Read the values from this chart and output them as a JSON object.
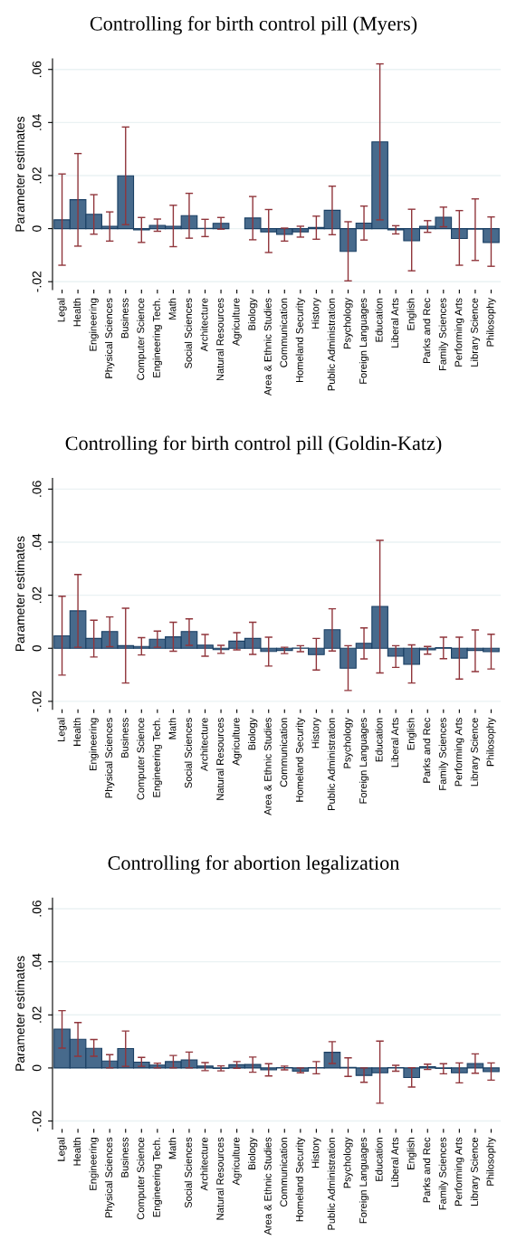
{
  "chart_data": [
    {
      "type": "bar",
      "title": "Controlling for birth control pill (Myers)",
      "ylabel": "Parameter estimates",
      "categories": [
        "Legal",
        "Health",
        "Engineering",
        "Physical Sciences",
        "Business",
        "Computer Science",
        "Engineering Tech.",
        "Math",
        "Social Sciences",
        "Architecture",
        "Natural Resources",
        "Agriculture",
        "Biology",
        "Area & Ethnic Studies",
        "Communication",
        "Homeland Security",
        "History",
        "Public Administration",
        "Psychology",
        "Foreign Languages",
        "Education",
        "Liberal Arts",
        "English",
        "Parks and Rec",
        "Family Sciences",
        "Performing Arts",
        "Library Science",
        "Philosophy"
      ],
      "values": [
        0.0033,
        0.0109,
        0.0054,
        0.0009,
        0.0199,
        -0.0005,
        0.0012,
        0.0009,
        0.0049,
        0.0001,
        0.002,
        null,
        0.004,
        -0.0012,
        -0.0022,
        -0.0012,
        0.0004,
        0.0069,
        -0.0086,
        0.0021,
        0.0327,
        -0.0005,
        -0.0046,
        0.0009,
        0.0043,
        -0.0037,
        -0.0002,
        -0.0052
      ],
      "errors": [
        [
          -0.0138,
          0.0206
        ],
        [
          -0.0066,
          0.0283
        ],
        [
          -0.0021,
          0.0128
        ],
        [
          -0.0047,
          0.0063
        ],
        [
          0.0015,
          0.0383
        ],
        [
          -0.0052,
          0.0042
        ],
        [
          -0.001,
          0.0036
        ],
        [
          -0.0068,
          0.0088
        ],
        [
          -0.0036,
          0.0133
        ],
        [
          -0.003,
          0.0035
        ],
        [
          -0.0002,
          0.0042
        ],
        null,
        [
          -0.0042,
          0.0121
        ],
        [
          -0.009,
          0.0072
        ],
        [
          -0.0047,
          0.0002
        ],
        [
          -0.0032,
          0.0009
        ],
        [
          -0.004,
          0.0047
        ],
        [
          -0.0023,
          0.016
        ],
        [
          -0.0197,
          0.0026
        ],
        [
          -0.0043,
          0.0085
        ],
        [
          0.0033,
          0.0621
        ],
        [
          -0.002,
          0.0011
        ],
        [
          -0.0159,
          0.0073
        ],
        [
          -0.0014,
          0.003
        ],
        [
          0.0007,
          0.0081
        ],
        [
          -0.0138,
          0.0068
        ],
        [
          -0.012,
          0.0112
        ],
        [
          -0.0142,
          0.0044
        ]
      ],
      "color": "#476a8c",
      "ylim": [
        -0.023,
        0.064
      ],
      "yticks": [
        {
          "value": -0.02,
          "label": "-.02"
        },
        0,
        {
          "value": 0.02,
          "label": ".02"
        },
        {
          "value": 0.04,
          "label": ".04"
        },
        {
          "value": 0.06,
          "label": ".06"
        }
      ],
      "grid": "y"
    },
    {
      "type": "bar",
      "title": "Controlling for birth control pill (Goldin-Katz)",
      "ylabel": "Parameter estimates",
      "categories": [
        "Legal",
        "Health",
        "Engineering",
        "Physical Sciences",
        "Business",
        "Computer Science",
        "Engineering Tech.",
        "Math",
        "Social Sciences",
        "Architecture",
        "Natural Resources",
        "Agriculture",
        "Biology",
        "Area & Ethnic Studies",
        "Communication",
        "Homeland Security",
        "History",
        "Public Administration",
        "Psychology",
        "Foreign Languages",
        "Education",
        "Liberal Arts",
        "English",
        "Parks and Rec",
        "Family Sciences",
        "Performing Arts",
        "Library Science",
        "Philosophy"
      ],
      "values": [
        0.0047,
        0.0141,
        0.0037,
        0.0063,
        0.001,
        0.0007,
        0.0034,
        0.0043,
        0.0063,
        0.0012,
        -0.0005,
        0.0027,
        0.0037,
        -0.0012,
        -0.0008,
        0.0001,
        -0.0024,
        0.007,
        -0.0075,
        0.0019,
        0.0158,
        -0.003,
        -0.006,
        -0.0006,
        0.0002,
        -0.0037,
        -0.0008,
        -0.0013
      ],
      "errors": [
        [
          -0.0101,
          0.0196
        ],
        [
          0.0004,
          0.0278
        ],
        [
          -0.0033,
          0.0106
        ],
        [
          0.0006,
          0.0118
        ],
        [
          -0.0131,
          0.0151
        ],
        [
          -0.0025,
          0.004
        ],
        [
          0.0004,
          0.0065
        ],
        [
          -0.0011,
          0.0098
        ],
        [
          0.0011,
          0.0111
        ],
        [
          -0.003,
          0.0052
        ],
        [
          -0.0019,
          0.0011
        ],
        [
          -0.0006,
          0.0059
        ],
        [
          -0.0023,
          0.0098
        ],
        [
          -0.0067,
          0.0042
        ],
        [
          -0.002,
          0.0004
        ],
        [
          -0.0013,
          0.001
        ],
        [
          -0.0082,
          0.0037
        ],
        [
          -0.001,
          0.0149
        ],
        [
          -0.0159,
          0.001
        ],
        [
          -0.004,
          0.0077
        ],
        [
          -0.0093,
          0.0407
        ],
        [
          -0.0072,
          0.001
        ],
        [
          -0.0131,
          0.0013
        ],
        [
          -0.0022,
          0.0007
        ],
        [
          -0.0039,
          0.0042
        ],
        [
          -0.0116,
          0.0042
        ],
        [
          -0.0088,
          0.0069
        ],
        [
          -0.0078,
          0.0053
        ]
      ],
      "color": "#476a8c",
      "ylim": [
        -0.023,
        0.064
      ],
      "yticks": [
        {
          "value": -0.02,
          "label": "-.02"
        },
        0,
        {
          "value": 0.02,
          "label": ".02"
        },
        {
          "value": 0.04,
          "label": ".04"
        },
        {
          "value": 0.06,
          "label": ".06"
        }
      ],
      "grid": "y"
    },
    {
      "type": "bar",
      "title": "Controlling for abortion legalization",
      "ylabel": "Parameter estimates",
      "categories": [
        "Legal",
        "Health",
        "Engineering",
        "Physical Sciences",
        "Business",
        "Computer Science",
        "Engineering Tech.",
        "Math",
        "Social Sciences",
        "Architecture",
        "Natural Resources",
        "Agriculture",
        "Biology",
        "Area & Ethnic Studies",
        "Communication",
        "Homeland Security",
        "History",
        "Public Administration",
        "Psychology",
        "Foreign Languages",
        "Education",
        "Liberal Arts",
        "English",
        "Parks and Rec",
        "Family Sciences",
        "Performing Arts",
        "Library Science",
        "Philosophy"
      ],
      "values": [
        0.0146,
        0.0108,
        0.0074,
        0.0026,
        0.0073,
        0.0022,
        0.0011,
        0.0024,
        0.003,
        0.0007,
        -0.0002,
        0.0012,
        0.0013,
        -0.0007,
        0.0001,
        -0.0012,
        0.0001,
        0.0059,
        0.0002,
        -0.0028,
        -0.0018,
        0.0001,
        -0.0036,
        0.0005,
        -0.0002,
        -0.0018,
        0.0017,
        -0.0014
      ],
      "errors": [
        [
          0.0075,
          0.0216
        ],
        [
          0.0044,
          0.0171
        ],
        [
          0.0044,
          0.0107
        ],
        [
          0.0,
          0.005
        ],
        [
          0.0006,
          0.0139
        ],
        [
          0.0006,
          0.004
        ],
        [
          0.0,
          0.0018
        ],
        [
          0.0,
          0.0047
        ],
        [
          0.0,
          0.006
        ],
        [
          -0.001,
          0.002
        ],
        [
          -0.0011,
          0.0008
        ],
        [
          -0.0001,
          0.0024
        ],
        [
          -0.0016,
          0.0041
        ],
        [
          -0.003,
          0.0016
        ],
        [
          -0.0007,
          0.0007
        ],
        [
          -0.0018,
          0.0
        ],
        [
          -0.0022,
          0.0024
        ],
        [
          0.0017,
          0.0099
        ],
        [
          -0.0032,
          0.0038
        ],
        [
          -0.0054,
          0.0
        ],
        [
          -0.0133,
          0.0101
        ],
        [
          -0.0012,
          0.001
        ],
        [
          -0.0072,
          0.0001
        ],
        [
          -0.0006,
          0.0014
        ],
        [
          -0.0022,
          0.0016
        ],
        [
          -0.0056,
          0.0019
        ],
        [
          -0.002,
          0.0053
        ],
        [
          -0.0046,
          0.0019
        ]
      ],
      "color": "#476a8c",
      "ylim": [
        -0.023,
        0.064
      ],
      "yticks": [
        {
          "value": -0.02,
          "label": "-.02"
        },
        0,
        {
          "value": 0.02,
          "label": ".02"
        },
        {
          "value": 0.04,
          "label": ".04"
        },
        {
          "value": 0.06,
          "label": ".06"
        }
      ],
      "grid": "y"
    }
  ]
}
